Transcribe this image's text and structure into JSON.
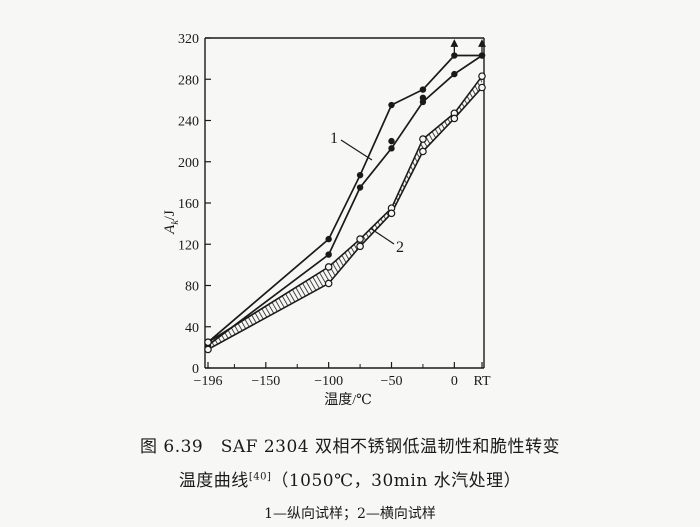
{
  "chart_data": {
    "type": "line",
    "ylabel": "A_k/J",
    "ylabel_main": "A",
    "ylabel_sub": "k",
    "ylabel_unit": "/J",
    "xlabel": "温度/℃",
    "xlim": [
      -200,
      25
    ],
    "ylim": [
      0,
      320
    ],
    "x_ticks": [
      {
        "value": -196,
        "label": "−196"
      },
      {
        "value": -150,
        "label": "−150"
      },
      {
        "value": -100,
        "label": "−100"
      },
      {
        "value": -50,
        "label": "−50"
      },
      {
        "value": 0,
        "label": "0"
      },
      {
        "value": 22,
        "label": "RT"
      }
    ],
    "y_ticks": [
      0,
      40,
      80,
      120,
      160,
      200,
      240,
      280,
      320
    ],
    "series": [
      {
        "name": "1",
        "style": "line-band",
        "upper": [
          {
            "x": -196,
            "y": 25
          },
          {
            "x": -100,
            "y": 125
          },
          {
            "x": -75,
            "y": 187
          },
          {
            "x": -50,
            "y": 255
          },
          {
            "x": -25,
            "y": 270
          },
          {
            "x": 0,
            "y": 303
          },
          {
            "x": 22,
            "y": 303
          }
        ],
        "lower": [
          {
            "x": -196,
            "y": 22
          },
          {
            "x": -100,
            "y": 110
          },
          {
            "x": -75,
            "y": 175
          },
          {
            "x": -50,
            "y": 213
          },
          {
            "x": -25,
            "y": 258
          },
          {
            "x": 0,
            "y": 285
          },
          {
            "x": 22,
            "y": 303
          }
        ],
        "extra_points": [
          {
            "x": -50,
            "y": 220
          },
          {
            "x": -25,
            "y": 262
          }
        ]
      },
      {
        "name": "2",
        "style": "hatched-band",
        "upper": [
          {
            "x": -196,
            "y": 25
          },
          {
            "x": -100,
            "y": 98
          },
          {
            "x": -75,
            "y": 125
          },
          {
            "x": -50,
            "y": 155
          },
          {
            "x": -25,
            "y": 222
          },
          {
            "x": 0,
            "y": 247
          },
          {
            "x": 22,
            "y": 283
          }
        ],
        "lower": [
          {
            "x": -196,
            "y": 18
          },
          {
            "x": -100,
            "y": 82
          },
          {
            "x": -75,
            "y": 118
          },
          {
            "x": -50,
            "y": 150
          },
          {
            "x": -25,
            "y": 210
          },
          {
            "x": 0,
            "y": 242
          },
          {
            "x": 22,
            "y": 272
          }
        ]
      }
    ],
    "annotations": [
      {
        "text": "1",
        "target_series": "1"
      },
      {
        "text": "2",
        "target_series": "2"
      }
    ]
  },
  "caption": {
    "line1": "图 6.39　SAF 2304 双相不锈钢低温韧性和脆性转变",
    "line2_main": "温度曲线",
    "line2_ref": "[40]",
    "line2_rest": "（1050℃，30min 水汽处理）",
    "legend_note": "1—纵向试样；2—横向试样"
  }
}
